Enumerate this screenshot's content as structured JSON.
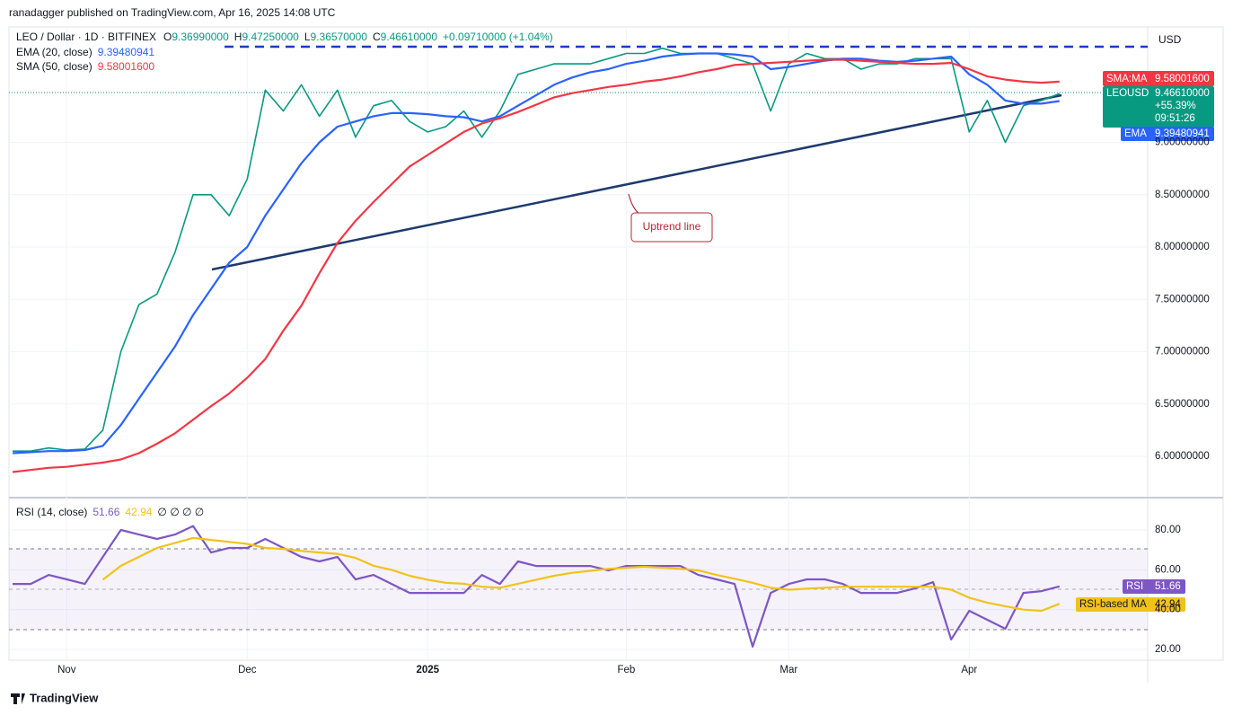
{
  "header": {
    "byline": "ranadagger published on TradingView.com, Apr 16, 2025 14:08 UTC",
    "currency": "USD",
    "footer": "TradingView"
  },
  "legend": {
    "symbol": "LEO / Dollar · 1D · BITFINEX",
    "ohlc": [
      {
        "key": "O",
        "value": "9.36990000"
      },
      {
        "key": "H",
        "value": "9.47250000"
      },
      {
        "key": "L",
        "value": "9.36570000"
      },
      {
        "key": "C",
        "value": "9.46610000"
      }
    ],
    "change": "+0.09710000 (+1.04%)",
    "ema_value": "9.39480941",
    "sma_value": "9.58001600",
    "rsi_value": "51.66",
    "rsi_ma_value": "42.94",
    "rsi_extra": "∅ ∅ ∅ ∅"
  },
  "price_labels": {
    "sma_name": "SMA:MA",
    "sma_value": "9.58001600",
    "symbol": "LEOUSD",
    "last": "9.46610000",
    "change": "+55.39%",
    "countdown": "09:51:26",
    "ema_name": "EMA",
    "ema_value": "9.39480941",
    "rsi_name": "RSI",
    "rsi_value": "51.66",
    "rsi_ma_name": "RSI-based MA",
    "rsi_ma_value": "42.94"
  },
  "annotation": "Uptrend line",
  "chart_data": [
    {
      "type": "line",
      "categories": [
        null,
        null,
        null,
        "Nov",
        null,
        null,
        null,
        null,
        null,
        null,
        null,
        null,
        null,
        "Dec",
        null,
        null,
        null,
        null,
        null,
        null,
        null,
        null,
        null,
        "2025",
        null,
        null,
        null,
        null,
        null,
        null,
        null,
        null,
        null,
        null,
        "Feb",
        null,
        null,
        null,
        null,
        null,
        null,
        null,
        null,
        "Mar",
        null,
        null,
        null,
        null,
        null,
        null,
        null,
        null,
        null,
        "Apr",
        null,
        null,
        null,
        null,
        null
      ],
      "series": [
        {
          "name": "LEO / Dollar · 1D · BITFINEX",
          "color": "#089981",
          "values": [
            6.05,
            6.05,
            6.08,
            6.06,
            6.07,
            6.25,
            7.0,
            7.45,
            7.55,
            7.95,
            8.5,
            8.5,
            8.3,
            8.65,
            9.5,
            9.3,
            9.55,
            9.25,
            9.5,
            9.05,
            9.35,
            9.4,
            9.2,
            9.1,
            9.15,
            9.3,
            9.05,
            9.3,
            9.65,
            9.7,
            9.75,
            9.75,
            9.75,
            9.8,
            9.85,
            9.85,
            9.9,
            9.85,
            9.85,
            9.85,
            9.8,
            9.75,
            9.3,
            9.75,
            9.85,
            9.8,
            9.8,
            9.7,
            9.75,
            9.75,
            9.8,
            9.8,
            9.8,
            9.1,
            9.4,
            9.0,
            9.35,
            9.4,
            9.4661
          ]
        },
        {
          "name": "EMA (20, close)",
          "color": "#2962ff",
          "values": [
            6.03,
            6.04,
            6.05,
            6.05,
            6.06,
            6.1,
            6.3,
            6.55,
            6.8,
            7.05,
            7.35,
            7.6,
            7.85,
            8.0,
            8.3,
            8.55,
            8.8,
            9.0,
            9.15,
            9.2,
            9.25,
            9.28,
            9.28,
            9.27,
            9.25,
            9.24,
            9.2,
            9.25,
            9.35,
            9.45,
            9.55,
            9.62,
            9.67,
            9.7,
            9.75,
            9.78,
            9.82,
            9.84,
            9.85,
            9.85,
            9.84,
            9.82,
            9.7,
            9.72,
            9.75,
            9.78,
            9.8,
            9.8,
            9.78,
            9.77,
            9.78,
            9.8,
            9.82,
            9.65,
            9.55,
            9.4,
            9.37,
            9.37,
            9.39480941
          ]
        },
        {
          "name": "SMA (50, close)",
          "color": "#f23645",
          "values": [
            5.85,
            5.87,
            5.89,
            5.9,
            5.92,
            5.94,
            5.97,
            6.03,
            6.12,
            6.22,
            6.35,
            6.48,
            6.6,
            6.75,
            6.93,
            7.2,
            7.44,
            7.75,
            8.04,
            8.25,
            8.43,
            8.6,
            8.77,
            8.88,
            8.99,
            9.1,
            9.18,
            9.23,
            9.29,
            9.36,
            9.43,
            9.47,
            9.5,
            9.53,
            9.55,
            9.58,
            9.6,
            9.63,
            9.67,
            9.7,
            9.74,
            9.75,
            9.76,
            9.77,
            9.78,
            9.79,
            9.79,
            9.78,
            9.77,
            9.76,
            9.75,
            9.75,
            9.76,
            9.7,
            9.63,
            9.6,
            9.58,
            9.57,
            9.580016
          ]
        }
      ],
      "ylim": [
        5.614,
        10.103
      ],
      "yticks": [
        {
          "value": 6,
          "label": "6.00000000"
        },
        {
          "value": 6.5,
          "label": "6.50000000"
        },
        {
          "value": 7,
          "label": "7.00000000"
        },
        {
          "value": 7.5,
          "label": "7.50000000"
        },
        {
          "value": 8,
          "label": "8.00000000"
        },
        {
          "value": 8.5,
          "label": "8.50000000"
        },
        {
          "value": 9,
          "label": "9.00000000"
        }
      ],
      "grid": true
    },
    {
      "type": "line",
      "series": [
        {
          "name": "RSI (14, close)",
          "color": "#7e57c2",
          "values": [
            52.9,
            52.9,
            57.4,
            55.2,
            52.9,
            66.5,
            80,
            77.7,
            75.5,
            77.7,
            82,
            68.7,
            71,
            71,
            75.5,
            71,
            66.5,
            64.2,
            66.5,
            55.2,
            57.4,
            52.9,
            48.4,
            48.4,
            48.4,
            48.4,
            57.4,
            52.9,
            64.2,
            61.9,
            61.9,
            61.9,
            61.9,
            59.7,
            61.9,
            61.9,
            61.9,
            61.9,
            57.4,
            55.2,
            52.9,
            21.4,
            48.4,
            52.9,
            55.2,
            55.2,
            52.9,
            48.4,
            48.4,
            48.4,
            50.7,
            53.8,
            25,
            39.4,
            34.9,
            30.4,
            48.4,
            49.3,
            51.66
          ]
        },
        {
          "name": "RSI-based MA",
          "color": "#f2c21b",
          "values": [
            null,
            null,
            null,
            null,
            null,
            55,
            62,
            66.5,
            71,
            73.5,
            76,
            75,
            74,
            73,
            71,
            70.5,
            69.5,
            68.7,
            68,
            66,
            62,
            60,
            57,
            55,
            53.5,
            53,
            51.5,
            51,
            53,
            55,
            57,
            58.5,
            59.5,
            60.5,
            61,
            61.5,
            61,
            60.5,
            59.7,
            57.4,
            55.5,
            53.5,
            51,
            50,
            50.5,
            51,
            51.5,
            51.5,
            51.5,
            51.5,
            51.5,
            51.5,
            50,
            46,
            43.5,
            41.7,
            40,
            39.4,
            42.94
          ]
        }
      ],
      "ylim": [
        14.6,
        95.8
      ],
      "yticks": [
        {
          "value": 20,
          "label": "20.00"
        },
        {
          "value": 40,
          "label": "40.00"
        },
        {
          "value": 60,
          "label": "60.00"
        },
        {
          "value": 80,
          "label": "80.00"
        }
      ],
      "grid": true
    }
  ]
}
